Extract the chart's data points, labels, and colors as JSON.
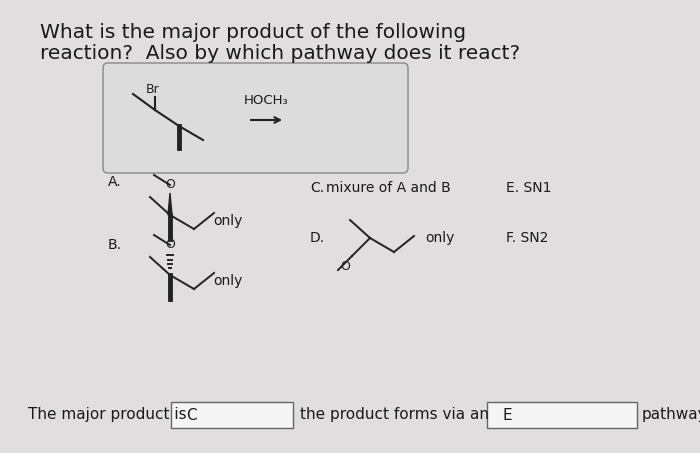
{
  "background_color": "#e0dede",
  "title_line1": "What is the major product of the following",
  "title_line2": "reaction?  Also by which pathway does it react?",
  "title_fontsize": 14.5,
  "answer_text1": "The major product is",
  "answer_box1": "C",
  "answer_text2": "the product forms via an",
  "answer_box2": "E",
  "answer_text3": "pathway",
  "text_color": "#1a1a1a"
}
